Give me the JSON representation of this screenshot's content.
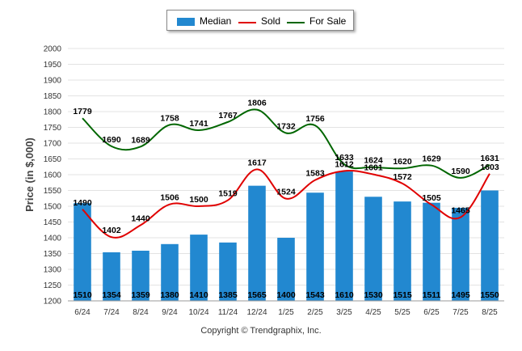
{
  "chart_data": {
    "type": "bar",
    "title": "",
    "xlabel": "",
    "ylabel": "Price (in $,000)",
    "ylim": [
      1200,
      2000
    ],
    "yticks": [
      1200,
      1250,
      1300,
      1350,
      1400,
      1450,
      1500,
      1550,
      1600,
      1650,
      1700,
      1750,
      1800,
      1850,
      1900,
      1950,
      2000
    ],
    "categories": [
      "6/24",
      "7/24",
      "8/24",
      "9/24",
      "10/24",
      "11/24",
      "12/24",
      "1/25",
      "2/25",
      "3/25",
      "4/25",
      "5/25",
      "6/25",
      "7/25",
      "8/25"
    ],
    "series": [
      {
        "name": "Median",
        "kind": "bar",
        "color": "#2288d0",
        "values": [
          1510,
          1354,
          1359,
          1380,
          1410,
          1385,
          1565,
          1400,
          1543,
          1610,
          1530,
          1515,
          1511,
          1495,
          1550
        ]
      },
      {
        "name": "Sold",
        "kind": "line",
        "color": "#e00000",
        "values": [
          1490,
          1402,
          1440,
          1506,
          1500,
          1519,
          1617,
          1524,
          1583,
          1612,
          1601,
          1572,
          1505,
          1465,
          1603
        ]
      },
      {
        "name": "For Sale",
        "kind": "line",
        "color": "#006600",
        "values": [
          1779,
          1690,
          1689,
          1758,
          1741,
          1767,
          1806,
          1732,
          1756,
          1633,
          1624,
          1620,
          1629,
          1590,
          1631
        ]
      }
    ],
    "grid": true,
    "legend": "top-center"
  },
  "footer": {
    "copyright": "Copyright © Trendgraphix, Inc."
  }
}
